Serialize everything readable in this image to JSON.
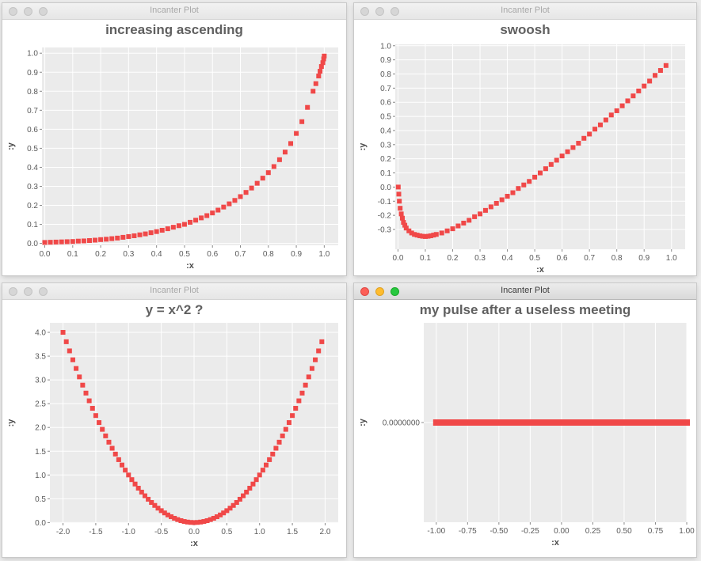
{
  "windows": [
    {
      "title": "Incanter Plot",
      "active": false,
      "chart": {
        "type": "scatter",
        "title": "increasing ascending",
        "xlabel": ":x",
        "ylabel": ":y",
        "xlim": [
          -0.01,
          1.05
        ],
        "ylim": [
          -0.01,
          1.03
        ],
        "xticks": [
          0.0,
          0.1,
          0.2,
          0.3,
          0.4,
          0.5,
          0.6,
          0.7,
          0.8,
          0.9,
          1.0
        ],
        "yticks": [
          0.0,
          0.1,
          0.2,
          0.3,
          0.4,
          0.5,
          0.6,
          0.7,
          0.8,
          0.9,
          1.0
        ],
        "tick_decimals": 1,
        "grid": true,
        "x": [
          0.0,
          0.02,
          0.04,
          0.06,
          0.08,
          0.1,
          0.12,
          0.14,
          0.16,
          0.18,
          0.2,
          0.22,
          0.24,
          0.26,
          0.28,
          0.3,
          0.32,
          0.34,
          0.36,
          0.38,
          0.4,
          0.42,
          0.44,
          0.46,
          0.48,
          0.5,
          0.52,
          0.54,
          0.56,
          0.58,
          0.6,
          0.62,
          0.64,
          0.66,
          0.68,
          0.7,
          0.72,
          0.74,
          0.76,
          0.78,
          0.8,
          0.82,
          0.84,
          0.86,
          0.88,
          0.9,
          0.92,
          0.94,
          0.96,
          0.97,
          0.98,
          0.985,
          0.99,
          0.995,
          0.998,
          1.0
        ],
        "y": [
          0.005,
          0.006,
          0.007,
          0.008,
          0.009,
          0.01,
          0.012,
          0.013,
          0.015,
          0.017,
          0.02,
          0.022,
          0.025,
          0.028,
          0.032,
          0.036,
          0.04,
          0.045,
          0.05,
          0.056,
          0.062,
          0.069,
          0.077,
          0.085,
          0.093,
          0.1,
          0.111,
          0.122,
          0.134,
          0.146,
          0.16,
          0.175,
          0.191,
          0.208,
          0.226,
          0.246,
          0.268,
          0.291,
          0.316,
          0.343,
          0.372,
          0.404,
          0.44,
          0.48,
          0.525,
          0.578,
          0.64,
          0.715,
          0.8,
          0.84,
          0.88,
          0.905,
          0.93,
          0.95,
          0.97,
          0.985
        ]
      }
    },
    {
      "title": "Incanter Plot",
      "active": false,
      "chart": {
        "type": "scatter",
        "title": "swoosh",
        "xlabel": ":x",
        "ylabel": ":y",
        "xlim": [
          -0.01,
          1.05
        ],
        "ylim": [
          -0.44,
          1.01
        ],
        "xticks": [
          0.0,
          0.1,
          0.2,
          0.3,
          0.4,
          0.5,
          0.6,
          0.7,
          0.8,
          0.9,
          1.0
        ],
        "yticks": [
          -0.3,
          -0.2,
          -0.1,
          0.0,
          0.1,
          0.2,
          0.3,
          0.4,
          0.5,
          0.6,
          0.7,
          0.8,
          0.9,
          1.0
        ],
        "tick_decimals": 1,
        "grid": true,
        "x": [
          0.001,
          0.003,
          0.005,
          0.008,
          0.012,
          0.016,
          0.02,
          0.025,
          0.03,
          0.04,
          0.05,
          0.06,
          0.07,
          0.08,
          0.09,
          0.1,
          0.11,
          0.12,
          0.13,
          0.14,
          0.16,
          0.18,
          0.2,
          0.22,
          0.24,
          0.26,
          0.28,
          0.3,
          0.32,
          0.34,
          0.36,
          0.38,
          0.4,
          0.42,
          0.44,
          0.46,
          0.48,
          0.5,
          0.52,
          0.54,
          0.56,
          0.58,
          0.6,
          0.62,
          0.64,
          0.66,
          0.68,
          0.7,
          0.72,
          0.74,
          0.76,
          0.78,
          0.8,
          0.82,
          0.84,
          0.86,
          0.88,
          0.9,
          0.92,
          0.94,
          0.96,
          0.98
        ],
        "y": [
          0.0,
          -0.05,
          -0.1,
          -0.15,
          -0.19,
          -0.22,
          -0.25,
          -0.27,
          -0.29,
          -0.31,
          -0.325,
          -0.335,
          -0.34,
          -0.345,
          -0.348,
          -0.35,
          -0.348,
          -0.345,
          -0.34,
          -0.335,
          -0.325,
          -0.31,
          -0.295,
          -0.275,
          -0.255,
          -0.235,
          -0.21,
          -0.19,
          -0.165,
          -0.14,
          -0.115,
          -0.09,
          -0.065,
          -0.04,
          -0.01,
          0.015,
          0.04,
          0.07,
          0.1,
          0.13,
          0.16,
          0.19,
          0.22,
          0.25,
          0.28,
          0.31,
          0.345,
          0.375,
          0.41,
          0.44,
          0.475,
          0.51,
          0.54,
          0.575,
          0.61,
          0.645,
          0.68,
          0.715,
          0.75,
          0.79,
          0.825,
          0.86
        ]
      }
    },
    {
      "title": "Incanter Plot",
      "active": false,
      "chart": {
        "type": "scatter",
        "title": "y = x^2 ?",
        "xlabel": ":x",
        "ylabel": ":y",
        "xlim": [
          -2.2,
          2.2
        ],
        "ylim": [
          -0.01,
          4.2
        ],
        "xticks": [
          -2.0,
          -1.5,
          -1.0,
          -0.5,
          0.0,
          0.5,
          1.0,
          1.5,
          2.0
        ],
        "yticks": [
          0.0,
          0.5,
          1.0,
          1.5,
          2.0,
          2.5,
          3.0,
          3.5,
          4.0
        ],
        "tick_decimals": 1,
        "grid": true,
        "x": [
          -2.0,
          -1.95,
          -1.9,
          -1.85,
          -1.8,
          -1.75,
          -1.7,
          -1.65,
          -1.6,
          -1.55,
          -1.5,
          -1.45,
          -1.4,
          -1.35,
          -1.3,
          -1.25,
          -1.2,
          -1.15,
          -1.1,
          -1.05,
          -1.0,
          -0.95,
          -0.9,
          -0.85,
          -0.8,
          -0.75,
          -0.7,
          -0.65,
          -0.6,
          -0.55,
          -0.5,
          -0.45,
          -0.4,
          -0.35,
          -0.3,
          -0.25,
          -0.2,
          -0.15,
          -0.1,
          -0.05,
          0.0,
          0.05,
          0.1,
          0.15,
          0.2,
          0.25,
          0.3,
          0.35,
          0.4,
          0.45,
          0.5,
          0.55,
          0.6,
          0.65,
          0.7,
          0.75,
          0.8,
          0.85,
          0.9,
          0.95,
          1.0,
          1.05,
          1.1,
          1.15,
          1.2,
          1.25,
          1.3,
          1.35,
          1.4,
          1.45,
          1.5,
          1.55,
          1.6,
          1.65,
          1.7,
          1.75,
          1.8,
          1.85,
          1.9,
          1.95
        ],
        "y": [
          4.0,
          3.8025,
          3.61,
          3.4225,
          3.24,
          3.0625,
          2.89,
          2.7225,
          2.56,
          2.4025,
          2.25,
          2.1025,
          1.96,
          1.8225,
          1.69,
          1.5625,
          1.44,
          1.3225,
          1.21,
          1.1025,
          1.0,
          0.9025,
          0.81,
          0.7225,
          0.64,
          0.5625,
          0.49,
          0.4225,
          0.36,
          0.3025,
          0.25,
          0.2025,
          0.16,
          0.1225,
          0.09,
          0.0625,
          0.04,
          0.0225,
          0.01,
          0.0025,
          0.0,
          0.0025,
          0.01,
          0.0225,
          0.04,
          0.0625,
          0.09,
          0.1225,
          0.16,
          0.2025,
          0.25,
          0.3025,
          0.36,
          0.4225,
          0.49,
          0.5625,
          0.64,
          0.7225,
          0.81,
          0.9025,
          1.0,
          1.1025,
          1.21,
          1.3225,
          1.44,
          1.5625,
          1.69,
          1.8225,
          1.96,
          2.1025,
          2.25,
          2.4025,
          2.56,
          2.7225,
          2.89,
          3.0625,
          3.24,
          3.4225,
          3.61,
          3.8025
        ]
      }
    },
    {
      "title": "Incanter Plot",
      "active": true,
      "chart": {
        "type": "scatter",
        "title": "my pulse after a useless meeting",
        "xlabel": ":x",
        "ylabel": ":y",
        "xlim": [
          -1.1,
          1.0
        ],
        "ylim": [
          -0.5,
          0.5
        ],
        "xticks": [
          -1.0,
          -0.75,
          -0.5,
          -0.25,
          0.0,
          0.25,
          0.5,
          0.75,
          1.0
        ],
        "xtick_labels": [
          "-1.00",
          "-0.75",
          "-0.50",
          "-0.25",
          "0.00",
          "0.25",
          "0.50",
          "0.75",
          "1.00"
        ],
        "yticks": [
          0.0
        ],
        "ytick_labels": [
          "0.0000000"
        ],
        "grid": true,
        "x": [
          -1.0,
          -0.96,
          -0.92,
          -0.88,
          -0.84,
          -0.8,
          -0.76,
          -0.72,
          -0.68,
          -0.64,
          -0.6,
          -0.56,
          -0.52,
          -0.48,
          -0.44,
          -0.4,
          -0.36,
          -0.32,
          -0.28,
          -0.24,
          -0.2,
          -0.16,
          -0.12,
          -0.08,
          -0.04,
          0.0,
          0.04,
          0.08,
          0.12,
          0.16,
          0.2,
          0.24,
          0.28,
          0.32,
          0.36,
          0.4,
          0.44,
          0.48,
          0.52,
          0.56,
          0.6,
          0.64,
          0.68,
          0.72,
          0.76,
          0.8,
          0.84,
          0.88,
          0.92,
          0.96,
          1.0
        ],
        "y": [
          0,
          0,
          0,
          0,
          0,
          0,
          0,
          0,
          0,
          0,
          0,
          0,
          0,
          0,
          0,
          0,
          0,
          0,
          0,
          0,
          0,
          0,
          0,
          0,
          0,
          0,
          0,
          0,
          0,
          0,
          0,
          0,
          0,
          0,
          0,
          0,
          0,
          0,
          0,
          0,
          0,
          0,
          0,
          0,
          0,
          0,
          0,
          0,
          0,
          0,
          0
        ]
      }
    }
  ],
  "colors": {
    "series": "#f04848",
    "plot_bg": "#ebebeb",
    "grid": "#ffffff"
  }
}
